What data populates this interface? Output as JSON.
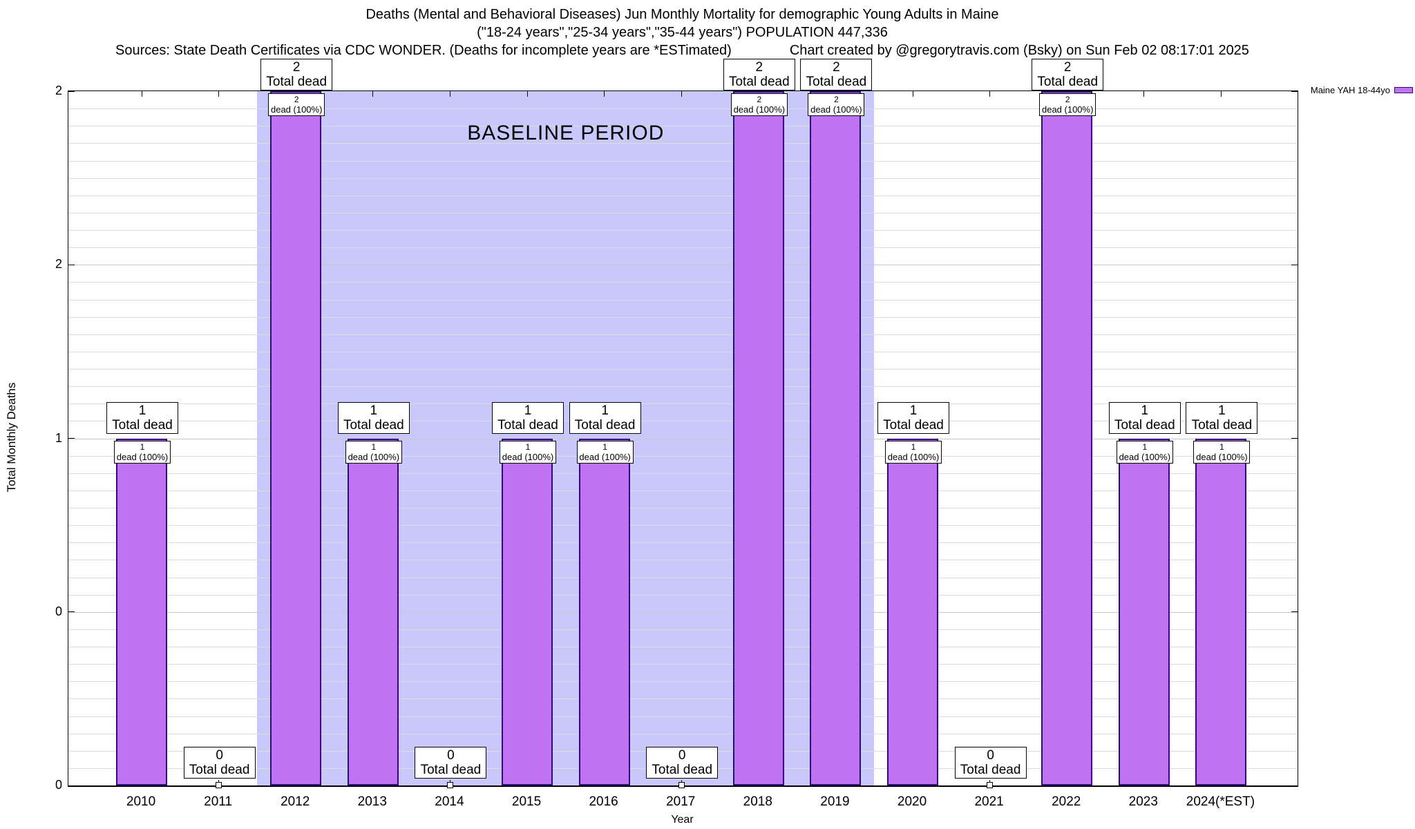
{
  "header": {
    "sources": "Sources: State Death Certificates via CDC WONDER. (Deaths for incomplete years are *ESTimated)",
    "credit": "Chart created by @gregorytravis.com (Bsky) on Sun Feb 02 08:17:01 2025"
  },
  "chart_data": {
    "type": "bar",
    "title": "Deaths (Mental and Behavioral Diseases) Jun Monthly Mortality for demographic Young Adults in Maine",
    "subtitle": "(\"18-24 years\",\"25-34 years\",\"35-44 years\") POPULATION 447,336",
    "categories": [
      "2010",
      "2011",
      "2012",
      "2013",
      "2014",
      "2015",
      "2016",
      "2017",
      "2018",
      "2019",
      "2020",
      "2021",
      "2022",
      "2023",
      "2024(*EST)"
    ],
    "values": [
      1,
      0,
      2,
      1,
      0,
      1,
      1,
      0,
      2,
      2,
      1,
      0,
      2,
      1,
      1
    ],
    "xlabel": "Year",
    "ylabel": "Total Monthly Deaths",
    "ylim": [
      0,
      2
    ],
    "yticks": [
      {
        "value": 0,
        "label": "0"
      },
      {
        "value": 0.5,
        "label": "0"
      },
      {
        "value": 1,
        "label": "1"
      },
      {
        "value": 1.5,
        "label": "2"
      },
      {
        "value": 2,
        "label": "2"
      }
    ],
    "grid": true,
    "legend": [
      "Maine YAH 18-44yo"
    ],
    "legend_position": "top-right",
    "total_label": "Total dead",
    "pct_label": "dead (100%)",
    "baseline": {
      "label": "BASELINE PERIOD",
      "span_years": [
        2011.5,
        2019.5
      ]
    },
    "colors": {
      "bar_fill": "#bf72f2",
      "bar_border": "#2f0a7a",
      "baseline_band": "#c9c8fa",
      "grid_minor": "#dcdcdc",
      "grid_major": "#c8c8c8"
    }
  }
}
